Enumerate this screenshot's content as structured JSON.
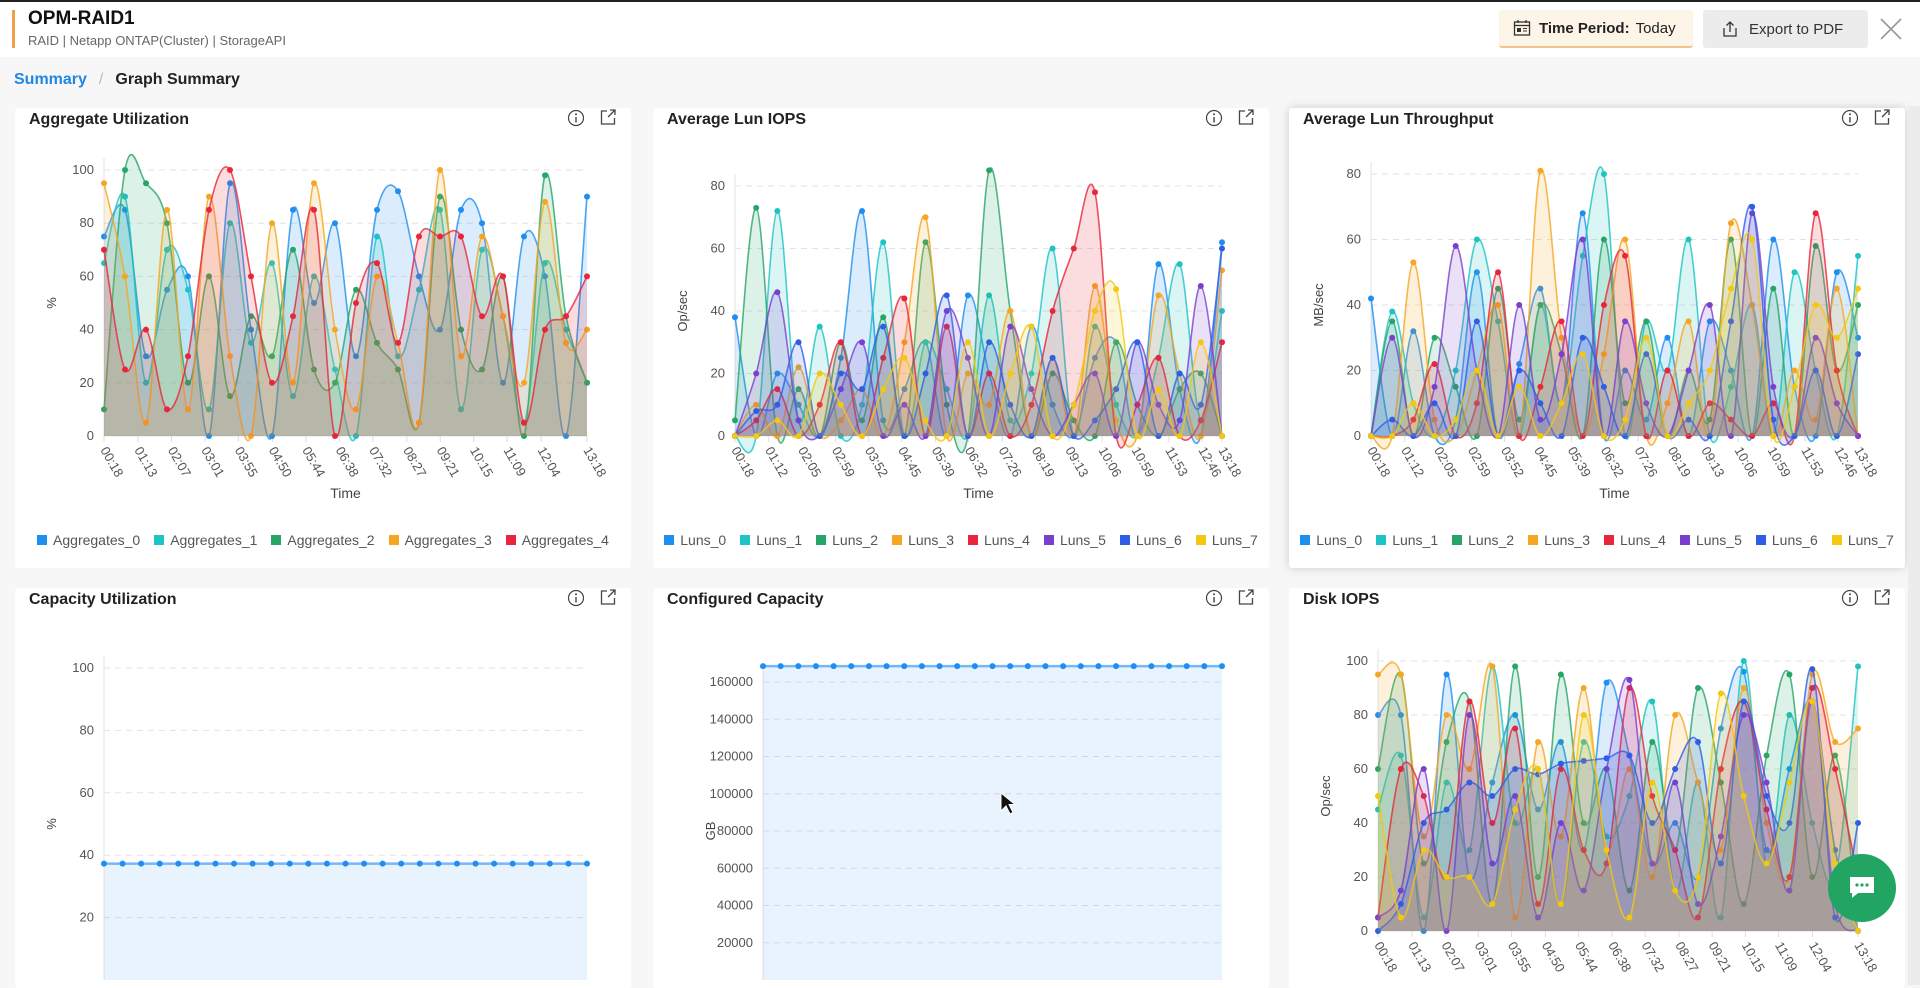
{
  "header": {
    "title": "OPM-RAID1",
    "subtitle": "RAID | Netapp ONTAP(Cluster)  | StorageAPI",
    "time_period_label": "Time Period:",
    "time_period_value": "Today",
    "export_label": "Export to PDF"
  },
  "breadcrumb": {
    "root": "Summary",
    "separator": "/",
    "current": "Graph Summary"
  },
  "colors": {
    "accent": "#1e88e5",
    "chat": "#22a562"
  },
  "chart_data": [
    {
      "type": "area",
      "title": "Aggregate Utilization",
      "xlabel": "Time",
      "ylabel": "%",
      "ylim": [
        0,
        100
      ],
      "yticks": [
        0,
        20,
        40,
        60,
        80,
        100
      ],
      "xticks": [
        "00:18",
        "01:13",
        "02:07",
        "03:01",
        "03:55",
        "04:50",
        "05:44",
        "06:38",
        "07:32",
        "08:27",
        "09:21",
        "10:15",
        "11:09",
        "12:04",
        "13:18"
      ],
      "legend": "bottom",
      "grid": true,
      "series": [
        {
          "name": "Aggregates_0",
          "color": "#1e8ef1",
          "values": [
            75,
            85,
            30,
            55,
            60,
            0,
            95,
            40,
            0,
            85,
            50,
            80,
            30,
            85,
            92,
            60,
            40,
            85,
            80,
            20,
            75,
            60,
            0,
            90
          ]
        },
        {
          "name": "Aggregates_1",
          "color": "#1ec3c3",
          "values": [
            65,
            90,
            20,
            70,
            55,
            10,
            80,
            35,
            65,
            15,
            60,
            25,
            0,
            75,
            30,
            55,
            85,
            10,
            70,
            45,
            5,
            65,
            40,
            20
          ]
        },
        {
          "name": "Aggregates_2",
          "color": "#27a567",
          "values": [
            10,
            100,
            95,
            80,
            20,
            60,
            15,
            45,
            30,
            70,
            25,
            20,
            55,
            35,
            25,
            5,
            90,
            40,
            25,
            60,
            0,
            98,
            45,
            20
          ]
        },
        {
          "name": "Aggregates_3",
          "color": "#f5a623",
          "values": [
            95,
            60,
            5,
            85,
            10,
            90,
            30,
            0,
            80,
            20,
            95,
            40,
            10,
            60,
            35,
            5,
            100,
            30,
            75,
            45,
            20,
            88,
            35,
            40
          ]
        },
        {
          "name": "Aggregates_4",
          "color": "#e8253a",
          "values": [
            70,
            25,
            40,
            10,
            30,
            85,
            100,
            60,
            20,
            45,
            85,
            0,
            50,
            65,
            35,
            75,
            75,
            75,
            45,
            60,
            5,
            40,
            45,
            60
          ]
        }
      ]
    },
    {
      "type": "area",
      "title": "Average Lun IOPS",
      "xlabel": "Time",
      "ylabel": "Op/sec",
      "ylim": [
        0,
        80
      ],
      "yticks": [
        0,
        20,
        40,
        60,
        80
      ],
      "xticks": [
        "00:18",
        "01:12",
        "02:05",
        "02:59",
        "03:52",
        "04:45",
        "05:39",
        "06:32",
        "07:26",
        "08:19",
        "09:13",
        "10:06",
        "10:59",
        "11:53",
        "12:46",
        "13:18"
      ],
      "legend": "bottom",
      "grid": true,
      "series": [
        {
          "name": "Luns_0",
          "color": "#1e8ef1",
          "values": [
            38,
            0,
            20,
            10,
            0,
            25,
            72,
            5,
            15,
            30,
            0,
            45,
            20,
            0,
            35,
            10,
            0,
            25,
            30,
            0,
            55,
            15,
            0,
            62
          ]
        },
        {
          "name": "Luns_1",
          "color": "#1ec3c3",
          "values": [
            0,
            0,
            72,
            5,
            35,
            0,
            10,
            62,
            0,
            30,
            15,
            0,
            45,
            5,
            20,
            60,
            0,
            35,
            10,
            0,
            25,
            55,
            5,
            40
          ]
        },
        {
          "name": "Luns_2",
          "color": "#27a567",
          "values": [
            5,
            73,
            0,
            15,
            0,
            30,
            5,
            38,
            0,
            62,
            10,
            0,
            85,
            40,
            0,
            20,
            5,
            0,
            30,
            10,
            0,
            15,
            20,
            0
          ]
        },
        {
          "name": "Luns_3",
          "color": "#f5a623",
          "values": [
            0,
            10,
            0,
            22,
            0,
            5,
            15,
            0,
            30,
            70,
            0,
            20,
            10,
            40,
            0,
            25,
            0,
            48,
            5,
            0,
            45,
            20,
            0,
            53
          ]
        },
        {
          "name": "Luns_4",
          "color": "#e8253a",
          "values": [
            0,
            5,
            15,
            0,
            10,
            30,
            0,
            25,
            44,
            0,
            35,
            0,
            20,
            0,
            10,
            40,
            60,
            78,
            0,
            10,
            25,
            0,
            5,
            30
          ]
        },
        {
          "name": "Luns_5",
          "color": "#7b3fd0",
          "values": [
            0,
            20,
            46,
            5,
            0,
            15,
            30,
            0,
            10,
            0,
            40,
            25,
            0,
            35,
            15,
            0,
            10,
            20,
            0,
            30,
            10,
            5,
            48,
            0
          ]
        },
        {
          "name": "Luns_6",
          "color": "#2f5ee5",
          "values": [
            0,
            8,
            10,
            30,
            0,
            20,
            15,
            35,
            0,
            20,
            45,
            0,
            30,
            10,
            0,
            25,
            0,
            5,
            15,
            30,
            0,
            20,
            10,
            60
          ]
        },
        {
          "name": "Luns_7",
          "color": "#f2c811",
          "values": [
            0,
            0,
            5,
            0,
            20,
            10,
            0,
            15,
            25,
            5,
            0,
            30,
            0,
            20,
            35,
            0,
            10,
            40,
            47,
            0,
            15,
            0,
            30,
            0
          ]
        }
      ]
    },
    {
      "type": "area",
      "title": "Average Lun Throughput",
      "xlabel": "Time",
      "ylabel": "MB/sec",
      "ylim": [
        0,
        80
      ],
      "yticks": [
        0,
        20,
        40,
        60,
        80
      ],
      "xticks": [
        "00:18",
        "01:12",
        "02:05",
        "02:59",
        "03:52",
        "04:45",
        "05:39",
        "06:32",
        "07:26",
        "08:19",
        "09:13",
        "10:06",
        "10:59",
        "11:53",
        "12:46",
        "13:18"
      ],
      "legend": "bottom",
      "grid": true,
      "series": [
        {
          "name": "Luns_0",
          "color": "#1e8ef1",
          "values": [
            42,
            0,
            32,
            0,
            5,
            50,
            0,
            22,
            45,
            10,
            68,
            0,
            20,
            5,
            30,
            0,
            35,
            20,
            0,
            60,
            15,
            0,
            50,
            30
          ]
        },
        {
          "name": "Luns_1",
          "color": "#1ec3c3",
          "values": [
            0,
            38,
            10,
            0,
            20,
            60,
            35,
            0,
            40,
            10,
            55,
            80,
            0,
            35,
            20,
            60,
            0,
            15,
            40,
            0,
            50,
            20,
            0,
            55
          ]
        },
        {
          "name": "Luns_2",
          "color": "#27a567",
          "values": [
            0,
            35,
            0,
            30,
            15,
            0,
            45,
            5,
            40,
            25,
            0,
            60,
            10,
            35,
            0,
            20,
            5,
            60,
            0,
            45,
            0,
            58,
            20,
            40
          ]
        },
        {
          "name": "Luns_3",
          "color": "#f5a623",
          "values": [
            0,
            0,
            53,
            5,
            0,
            20,
            40,
            0,
            81,
            30,
            0,
            25,
            60,
            0,
            10,
            35,
            0,
            65,
            40,
            0,
            20,
            5,
            45,
            0
          ]
        },
        {
          "name": "Luns_4",
          "color": "#e8253a",
          "values": [
            0,
            0,
            5,
            22,
            0,
            10,
            50,
            0,
            15,
            35,
            0,
            40,
            55,
            0,
            20,
            0,
            10,
            5,
            0,
            10,
            0,
            68,
            20,
            0
          ]
        },
        {
          "name": "Luns_5",
          "color": "#7b3fd0",
          "values": [
            0,
            30,
            0,
            15,
            58,
            20,
            0,
            40,
            5,
            25,
            60,
            0,
            35,
            10,
            0,
            20,
            40,
            0,
            68,
            15,
            0,
            30,
            10,
            0
          ]
        },
        {
          "name": "Luns_6",
          "color": "#2f5ee5",
          "values": [
            0,
            5,
            0,
            10,
            0,
            35,
            0,
            20,
            10,
            0,
            30,
            15,
            0,
            25,
            0,
            5,
            0,
            35,
            70,
            5,
            0,
            20,
            0,
            25
          ]
        },
        {
          "name": "Luns_7",
          "color": "#f2c811",
          "values": [
            0,
            0,
            10,
            0,
            5,
            20,
            0,
            15,
            0,
            10,
            25,
            0,
            5,
            30,
            0,
            10,
            20,
            45,
            60,
            0,
            15,
            40,
            30,
            45
          ]
        }
      ]
    },
    {
      "type": "area",
      "title": "Capacity Utilization",
      "xlabel": "",
      "ylabel": "%",
      "ylim": [
        0,
        100
      ],
      "yticks": [
        20,
        40,
        60,
        80,
        100
      ],
      "xticks": [],
      "grid": true,
      "series": [
        {
          "color": "#1e8ef1",
          "values": [
            37.3,
            37.3,
            37.3,
            37.3,
            37.3,
            37.3,
            37.3,
            37.3,
            37.3,
            37.3,
            37.3,
            37.3,
            37.3,
            37.3,
            37.3,
            37.3,
            37.3,
            37.3,
            37.3,
            37.3,
            37.3,
            37.3,
            37.3,
            37.3,
            37.3,
            37.3,
            37.3
          ]
        }
      ]
    },
    {
      "type": "area",
      "title": "Configured Capacity",
      "xlabel": "",
      "ylabel": "GB",
      "ylim": [
        0,
        172000
      ],
      "yticks": [
        20000,
        40000,
        60000,
        80000,
        100000,
        120000,
        140000,
        160000
      ],
      "xticks": [],
      "grid": true,
      "series": [
        {
          "color": "#1e8ef1",
          "values": [
            168500,
            168500,
            168500,
            168500,
            168500,
            168500,
            168500,
            168500,
            168500,
            168500,
            168500,
            168500,
            168500,
            168500,
            168500,
            168500,
            168500,
            168500,
            168500,
            168500,
            168500,
            168500,
            168500,
            168500,
            168500,
            168500,
            168500
          ]
        }
      ]
    },
    {
      "type": "area",
      "title": "Disk IOPS",
      "xlabel": "",
      "ylabel": "Op/sec",
      "ylim": [
        0,
        100
      ],
      "yticks": [
        0,
        20,
        40,
        60,
        80,
        100
      ],
      "xticks": [
        "00:18",
        "01:13",
        "02:07",
        "03:01",
        "03:55",
        "04:50",
        "05:44",
        "06:38",
        "07:32",
        "08:27",
        "09:21",
        "10:15",
        "11:09",
        "12:04",
        "13:18"
      ],
      "grid": true,
      "series": [
        {
          "color": "#1e8ef1",
          "values": [
            80,
            80,
            0,
            95,
            20,
            55,
            80,
            45,
            70,
            30,
            92,
            65,
            25,
            40,
            20,
            75,
            96,
            30,
            60,
            85,
            30,
            0
          ]
        },
        {
          "color": "#1ec3c3",
          "values": [
            45,
            65,
            5,
            55,
            30,
            98,
            40,
            60,
            10,
            70,
            35,
            50,
            85,
            15,
            55,
            5,
            100,
            25,
            80,
            40,
            20,
            98
          ]
        },
        {
          "color": "#27a567",
          "values": [
            60,
            95,
            25,
            70,
            85,
            10,
            98,
            20,
            95,
            40,
            60,
            15,
            70,
            30,
            90,
            55,
            10,
            65,
            95,
            20,
            65,
            5
          ]
        },
        {
          "color": "#f5a623",
          "values": [
            95,
            95,
            35,
            80,
            60,
            98,
            5,
            70,
            35,
            90,
            30,
            60,
            20,
            80,
            55,
            30,
            90,
            40,
            20,
            95,
            70,
            75
          ]
        },
        {
          "color": "#e8253a",
          "values": [
            5,
            60,
            50,
            20,
            85,
            40,
            75,
            10,
            60,
            30,
            25,
            90,
            50,
            30,
            5,
            60,
            85,
            45,
            20,
            90,
            60,
            20
          ]
        },
        {
          "color": "#7b3fd0",
          "values": [
            5,
            15,
            60,
            0,
            80,
            25,
            50,
            5,
            40,
            15,
            60,
            93,
            25,
            55,
            10,
            35,
            80,
            55,
            15,
            85,
            10,
            0
          ]
        },
        {
          "color": "#2f5ee5",
          "values": [
            0,
            10,
            40,
            45,
            55,
            50,
            60,
            58,
            62,
            63,
            64,
            65,
            40,
            60,
            70,
            25,
            85,
            50,
            40,
            97,
            5,
            40
          ]
        },
        {
          "color": "#f2c811",
          "values": [
            50,
            5,
            30,
            20,
            20,
            10,
            45,
            60,
            10,
            80,
            30,
            5,
            55,
            15,
            20,
            88,
            50,
            25,
            55,
            85,
            25,
            0
          ]
        }
      ]
    }
  ]
}
